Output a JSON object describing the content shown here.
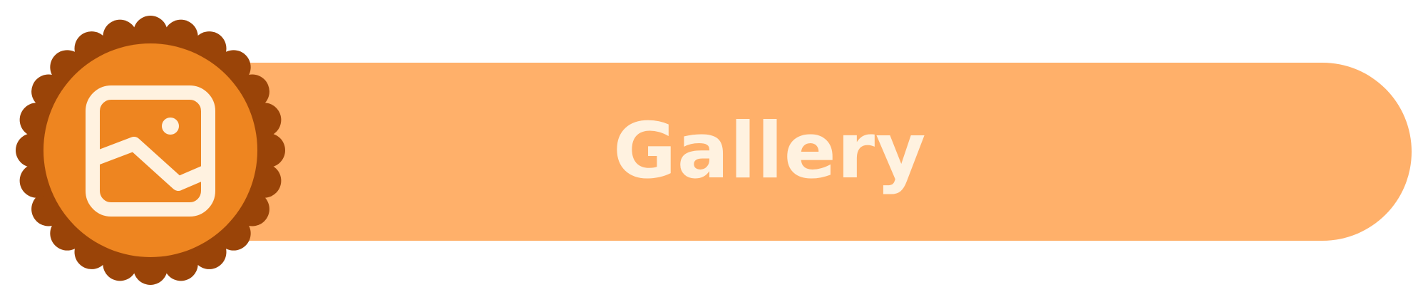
{
  "banner": {
    "label": "Gallery",
    "icon": "image-icon"
  },
  "colors": {
    "pill_fill": "#FFB06A",
    "label_text": "#FFF2E0",
    "badge_scallop": "#9A4408",
    "badge_circle": "#EE8520",
    "icon_stroke": "#FFF2E0"
  }
}
